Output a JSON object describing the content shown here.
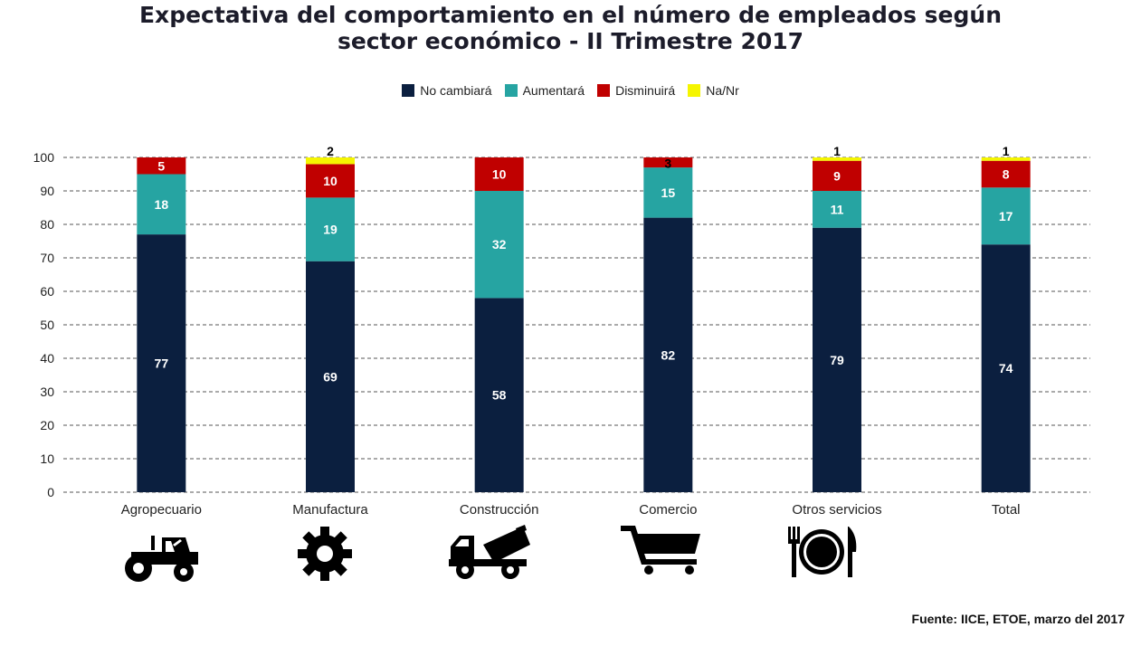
{
  "title_line1": "Expectativa  del comportamiento en el número de empleados según",
  "title_line2": "sector económico - II Trimestre 2017",
  "source": "Fuente: IICE, ETOE, marzo del 2017",
  "chart_data": {
    "type": "bar",
    "stacked": true,
    "title": "Expectativa  del comportamiento en el número de empleados según sector económico - II Trimestre 2017",
    "xlabel": "",
    "ylabel": "",
    "ylim": [
      0,
      100
    ],
    "yticks": [
      0,
      10,
      20,
      30,
      40,
      50,
      60,
      70,
      80,
      90,
      100
    ],
    "grid": true,
    "legend_position": "top",
    "categories": [
      "Agropecuario",
      "Manufactura",
      "Construcción",
      "Comercio",
      "Otros servicios",
      "Total"
    ],
    "series": [
      {
        "name": "No cambiará",
        "color": "#0b1f3f",
        "values": [
          77,
          69,
          58,
          82,
          79,
          74
        ]
      },
      {
        "name": "Aumentará",
        "color": "#26a4a2",
        "values": [
          18,
          19,
          32,
          15,
          11,
          17
        ]
      },
      {
        "name": "Disminuirá",
        "color": "#c00000",
        "values": [
          5,
          10,
          10,
          3,
          9,
          8
        ]
      },
      {
        "name": "Na/Nr",
        "color": "#f5f500",
        "values": [
          0,
          2,
          0,
          0,
          1,
          1
        ]
      }
    ]
  },
  "icons": [
    "tractor-icon",
    "gear-icon",
    "concrete-mixer-truck-icon",
    "shopping-cart-icon",
    "plate-fork-knife-icon",
    "none"
  ]
}
